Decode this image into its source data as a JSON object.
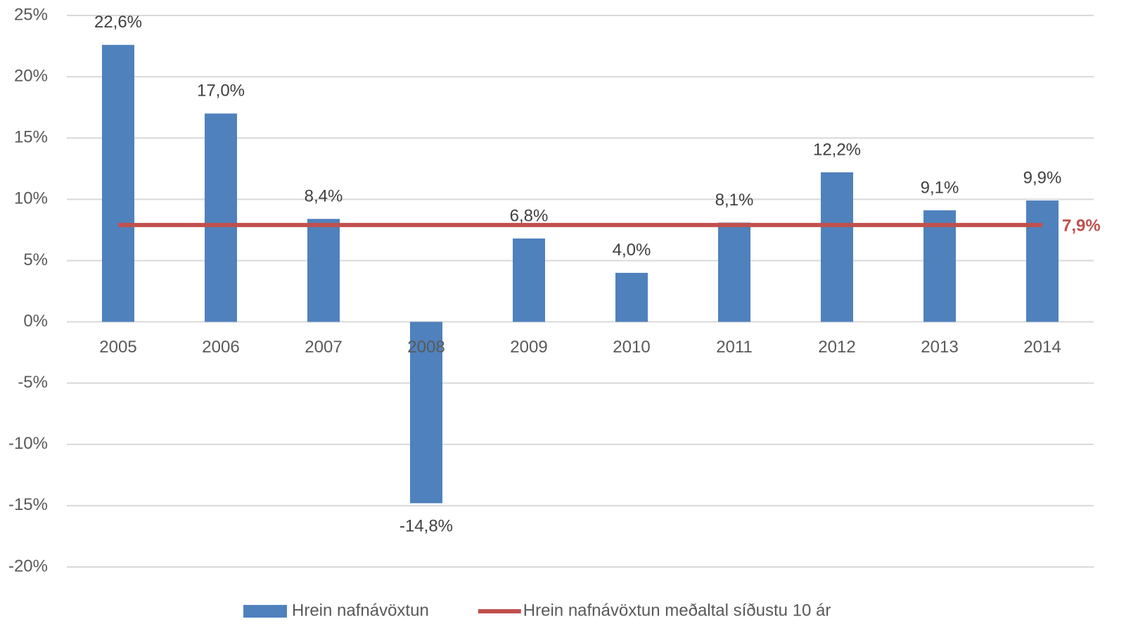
{
  "chart_data": {
    "type": "bar",
    "categories": [
      "2005",
      "2006",
      "2007",
      "2008",
      "2009",
      "2010",
      "2011",
      "2012",
      "2013",
      "2014"
    ],
    "series": [
      {
        "name": "Hrein nafnávöxtun",
        "type": "bar",
        "color": "#4f81bd",
        "values": [
          22.6,
          17.0,
          8.4,
          -14.8,
          6.8,
          4.0,
          8.1,
          12.2,
          9.1,
          9.9
        ],
        "value_labels": [
          "22,6%",
          "17,0%",
          "8,4%",
          "-14,8%",
          "6,8%",
          "4,0%",
          "8,1%",
          "12,2%",
          "9,1%",
          "9,9%"
        ]
      },
      {
        "name": "Hrein nafnávöxtun meðaltal síðustu 10 ár",
        "type": "line",
        "color": "#c0504d",
        "values": [
          7.9,
          7.9,
          7.9,
          7.9,
          7.9,
          7.9,
          7.9,
          7.9,
          7.9,
          7.9
        ],
        "value_labels": [
          null,
          null,
          null,
          null,
          null,
          null,
          null,
          null,
          null,
          "7,9%"
        ]
      }
    ],
    "ylim": [
      -20,
      25
    ],
    "yticks": [
      {
        "value": -20,
        "label": "-20%"
      },
      {
        "value": -15,
        "label": "-15%"
      },
      {
        "value": -10,
        "label": "-10%"
      },
      {
        "value": -5,
        "label": "-5%"
      },
      {
        "value": 0,
        "label": "0%"
      },
      {
        "value": 5,
        "label": "5%"
      },
      {
        "value": 10,
        "label": "10%"
      },
      {
        "value": 15,
        "label": "15%"
      },
      {
        "value": 20,
        "label": "20%"
      },
      {
        "value": 25,
        "label": "25%"
      }
    ],
    "grid": true,
    "legend": "bottom"
  }
}
